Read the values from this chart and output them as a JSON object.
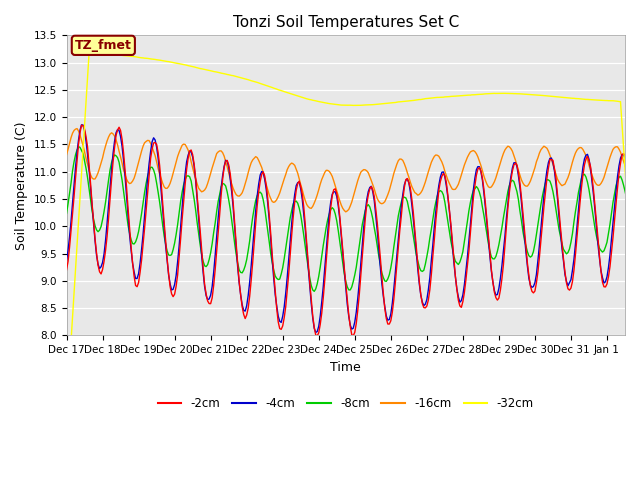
{
  "title": "Tonzi Soil Temperatures Set C",
  "xlabel": "Time",
  "ylabel": "Soil Temperature (C)",
  "ylim": [
    8.0,
    13.5
  ],
  "yticks": [
    8.0,
    8.5,
    9.0,
    9.5,
    10.0,
    10.5,
    11.0,
    11.5,
    12.0,
    12.5,
    13.0,
    13.5
  ],
  "colors": {
    "2cm": "#ff0000",
    "4cm": "#0000cc",
    "8cm": "#00cc00",
    "16cm": "#ff8800",
    "32cm": "#ffff00"
  },
  "bg_color": "#e8e8e8",
  "annotation_text": "TZ_fmet",
  "annotation_bg": "#ffff99",
  "annotation_border": "#880000",
  "legend_labels": [
    "-2cm",
    "-4cm",
    "-8cm",
    "-16cm",
    "-32cm"
  ],
  "x_tick_labels": [
    "Dec 17",
    "Dec 18",
    "Dec 19",
    "Dec 20",
    "Dec 21",
    "Dec 22",
    "Dec 23",
    "Dec 24",
    "Dec 25",
    "Dec 26",
    "Dec 27",
    "Dec 28",
    "Dec 29",
    "Dec 30",
    "Dec 31",
    "Jan 1"
  ],
  "title_fontsize": 11,
  "axis_fontsize": 9,
  "tick_fontsize": 7.5
}
